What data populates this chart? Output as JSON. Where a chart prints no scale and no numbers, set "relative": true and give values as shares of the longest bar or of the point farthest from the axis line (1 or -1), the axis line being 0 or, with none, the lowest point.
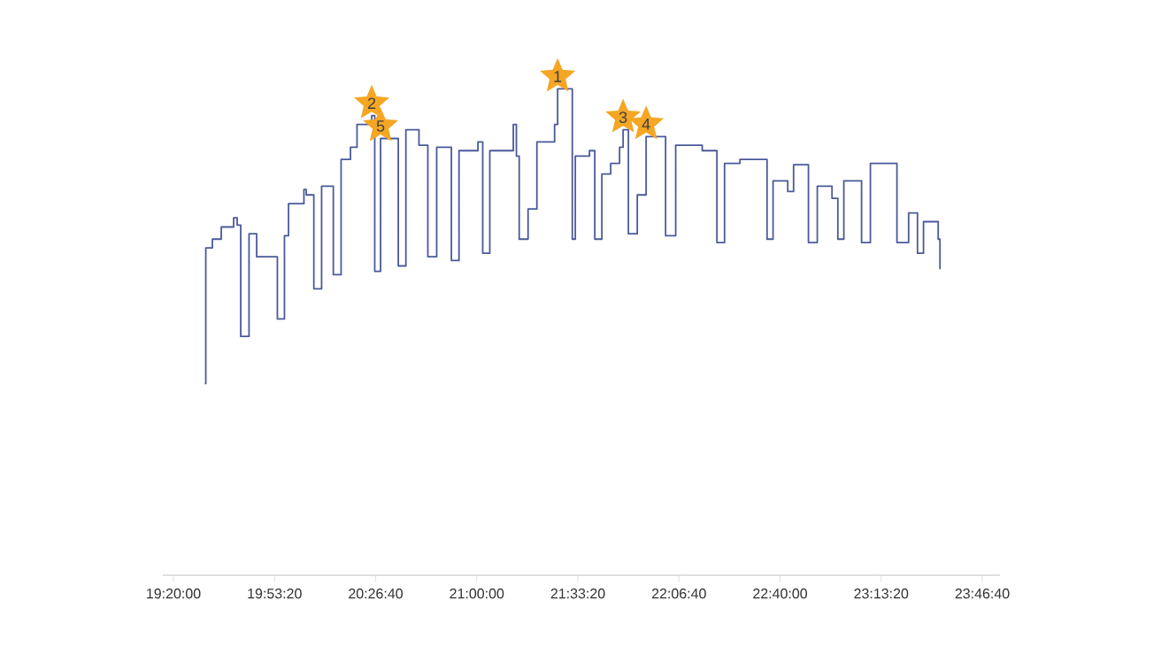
{
  "chart_data": {
    "type": "step",
    "relative": true,
    "color": "#4a5a9a",
    "marker": "none",
    "grid": false,
    "tick_labels": "x",
    "xlim": [
      19.275,
      23.875
    ],
    "xticks": [
      {
        "value": 19.3333,
        "label": "19:20:00"
      },
      {
        "value": 19.8889,
        "label": "19:53:20"
      },
      {
        "value": 20.4444,
        "label": "20:26:40"
      },
      {
        "value": 21.0,
        "label": "21:00:00"
      },
      {
        "value": 21.5556,
        "label": "21:33:20"
      },
      {
        "value": 22.1111,
        "label": "22:06:40"
      },
      {
        "value": 22.6667,
        "label": "22:40:00"
      },
      {
        "value": 23.2222,
        "label": "23:13:20"
      },
      {
        "value": 23.7778,
        "label": "23:46:40"
      }
    ],
    "x": [
      19.5055,
      19.5111,
      19.5473,
      19.596,
      19.6641,
      19.6836,
      19.703,
      19.7487,
      19.7906,
      19.9044,
      19.9433,
      19.9657,
      20.0503,
      20.063,
      20.1048,
      20.1475,
      20.2118,
      20.2546,
      20.3061,
      20.3421,
      20.4229,
      20.4394,
      20.4715,
      20.5688,
      20.6107,
      20.6826,
      20.7313,
      20.7799,
      20.8607,
      20.9025,
      21.0065,
      21.0328,
      21.0717,
      21.201,
      21.2178,
      21.2333,
      21.282,
      21.3305,
      21.4278,
      21.4444,
      21.5251,
      21.5416,
      21.6194,
      21.6486,
      21.6875,
      21.7361,
      21.7848,
      21.8042,
      21.8334,
      21.8821,
      21.9307,
      22.0377,
      22.0932,
      22.2391,
      22.3198,
      22.3617,
      22.4463,
      22.5952,
      22.6282,
      22.7089,
      22.741,
      22.8227,
      22.8713,
      22.9521,
      22.9842,
      23.0172,
      23.1145,
      23.1631,
      23.309,
      23.3732,
      23.4219,
      23.4549,
      23.5356,
      23.5454
    ],
    "values": [
      0.394,
      0.673,
      0.691,
      0.716,
      0.735,
      0.72,
      0.491,
      0.702,
      0.655,
      0.527,
      0.698,
      0.764,
      0.793,
      0.782,
      0.589,
      0.8,
      0.618,
      0.855,
      0.88,
      0.927,
      0.945,
      0.625,
      0.898,
      0.636,
      0.916,
      0.884,
      0.655,
      0.88,
      0.647,
      0.873,
      0.891,
      0.662,
      0.873,
      0.927,
      0.862,
      0.691,
      0.753,
      0.891,
      0.927,
      1.0,
      0.691,
      0.862,
      0.873,
      0.691,
      0.825,
      0.847,
      0.88,
      0.916,
      0.702,
      0.782,
      0.902,
      0.698,
      0.884,
      0.873,
      0.684,
      0.847,
      0.855,
      0.691,
      0.811,
      0.789,
      0.844,
      0.684,
      0.8,
      0.775,
      0.691,
      0.811,
      0.684,
      0.847,
      0.684,
      0.745,
      0.662,
      0.727,
      0.691,
      0.629
    ],
    "annotations": [
      {
        "text": "1",
        "x": 21.4444,
        "y": 1.0
      },
      {
        "text": "2",
        "x": 20.4229,
        "y": 0.945
      },
      {
        "text": "3",
        "x": 21.8042,
        "y": 0.916
      },
      {
        "text": "4",
        "x": 21.9307,
        "y": 0.902
      },
      {
        "text": "5",
        "x": 20.4715,
        "y": 0.898
      }
    ]
  }
}
